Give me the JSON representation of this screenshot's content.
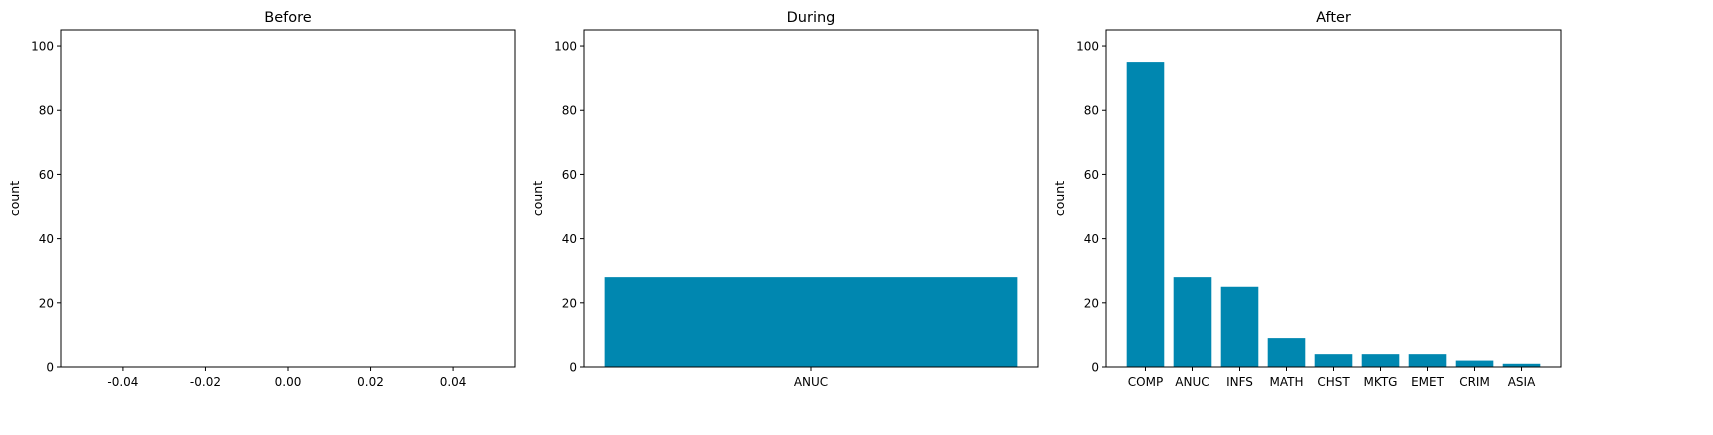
{
  "colors": {
    "bar": "#0087b0",
    "axis": "#000000",
    "background": "#ffffff"
  },
  "chart_data": [
    {
      "type": "bar",
      "title": "Before",
      "xlabel": "",
      "ylabel": "count",
      "categories": [],
      "values": [],
      "xlim": [
        -0.055,
        0.055
      ],
      "ylim": [
        0,
        105
      ],
      "xticks": [
        "-0.04",
        "-0.02",
        "0.00",
        "0.02",
        "0.04"
      ],
      "yticks": [
        "0",
        "20",
        "40",
        "60",
        "80",
        "100"
      ],
      "grid": false
    },
    {
      "type": "bar",
      "title": "During",
      "xlabel": "",
      "ylabel": "count",
      "categories": [
        "ANUC"
      ],
      "values": [
        28
      ],
      "ylim": [
        0,
        105
      ],
      "yticks": [
        "0",
        "20",
        "40",
        "60",
        "80",
        "100"
      ],
      "grid": false
    },
    {
      "type": "bar",
      "title": "After",
      "xlabel": "",
      "ylabel": "count",
      "categories": [
        "COMP",
        "ANUC",
        "INFS",
        "MATH",
        "CHST",
        "MKTG",
        "EMET",
        "CRIM",
        "ASIA"
      ],
      "values": [
        95,
        28,
        25,
        9,
        4,
        4,
        4,
        2,
        1
      ],
      "ylim": [
        0,
        105
      ],
      "yticks": [
        "0",
        "20",
        "40",
        "60",
        "80",
        "100"
      ],
      "grid": false
    }
  ]
}
